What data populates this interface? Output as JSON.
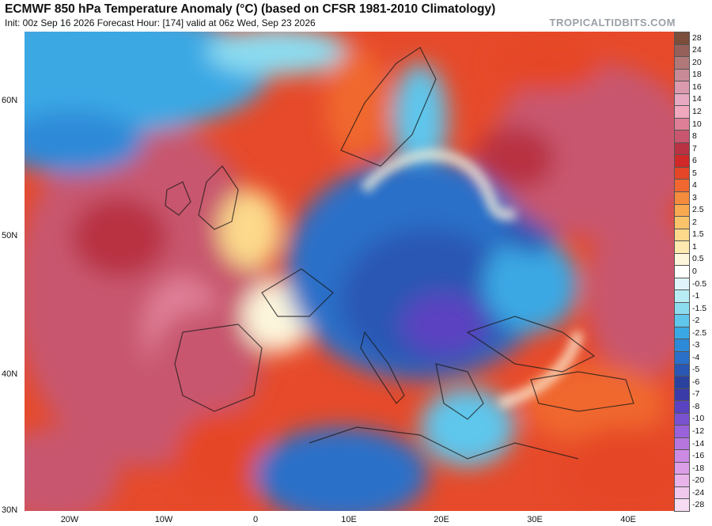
{
  "header": {
    "title": "ECMWF 850 hPa Temperature Anomaly (°C) (based on CFSR 1981-2010 Climatology)",
    "subtitle": "Init: 00z Sep 16 2026   Forecast Hour: [174]   valid at 06z Wed, Sep 23 2026",
    "brand": "TROPICALTIDBITS.COM"
  },
  "map": {
    "lat_labels": [
      "60N",
      "50N",
      "40N",
      "30N"
    ],
    "lon_labels": [
      "20W",
      "10W",
      "0",
      "10E",
      "20E",
      "30E",
      "40E"
    ]
  },
  "colorbar": {
    "levels": [
      {
        "label": "28",
        "color": "#7a4e3a"
      },
      {
        "label": "24",
        "color": "#95605a"
      },
      {
        "label": "20",
        "color": "#b07878"
      },
      {
        "label": "18",
        "color": "#c88a96"
      },
      {
        "label": "16",
        "color": "#db9aae"
      },
      {
        "label": "14",
        "color": "#e7a9c1"
      },
      {
        "label": "12",
        "color": "#f0a8be"
      },
      {
        "label": "10",
        "color": "#df7f97"
      },
      {
        "label": "8",
        "color": "#c8566e"
      },
      {
        "label": "7",
        "color": "#b83243"
      },
      {
        "label": "6",
        "color": "#d02828"
      },
      {
        "label": "5",
        "color": "#e54628"
      },
      {
        "label": "4",
        "color": "#f0672f"
      },
      {
        "label": "3",
        "color": "#f58b3c"
      },
      {
        "label": "2.5",
        "color": "#f9a94f"
      },
      {
        "label": "2",
        "color": "#fbc46b"
      },
      {
        "label": "1.5",
        "color": "#fcd98b"
      },
      {
        "label": "1",
        "color": "#fde9b0"
      },
      {
        "label": "0.5",
        "color": "#fdf6dc"
      },
      {
        "label": "0",
        "color": "#ffffff"
      },
      {
        "label": "-0.5",
        "color": "#dff5fb"
      },
      {
        "label": "-1",
        "color": "#b8ecf5"
      },
      {
        "label": "-1.5",
        "color": "#8cdcf0"
      },
      {
        "label": "-2",
        "color": "#5fc6ec"
      },
      {
        "label": "-2.5",
        "color": "#3aa8e4"
      },
      {
        "label": "-3",
        "color": "#2d8ad8"
      },
      {
        "label": "-4",
        "color": "#2a6fc8"
      },
      {
        "label": "-5",
        "color": "#2a56b4"
      },
      {
        "label": "-6",
        "color": "#2a419e"
      },
      {
        "label": "-7",
        "color": "#3a3aa8"
      },
      {
        "label": "-8",
        "color": "#5a43c0"
      },
      {
        "label": "-10",
        "color": "#7a52d0"
      },
      {
        "label": "-12",
        "color": "#9a62da"
      },
      {
        "label": "-14",
        "color": "#b776de"
      },
      {
        "label": "-16",
        "color": "#cc8ae2"
      },
      {
        "label": "-18",
        "color": "#dc9ee6"
      },
      {
        "label": "-20",
        "color": "#e8b4ea"
      },
      {
        "label": "-24",
        "color": "#f0c8ee"
      },
      {
        "label": "-28",
        "color": "#f6dcf2"
      }
    ]
  }
}
